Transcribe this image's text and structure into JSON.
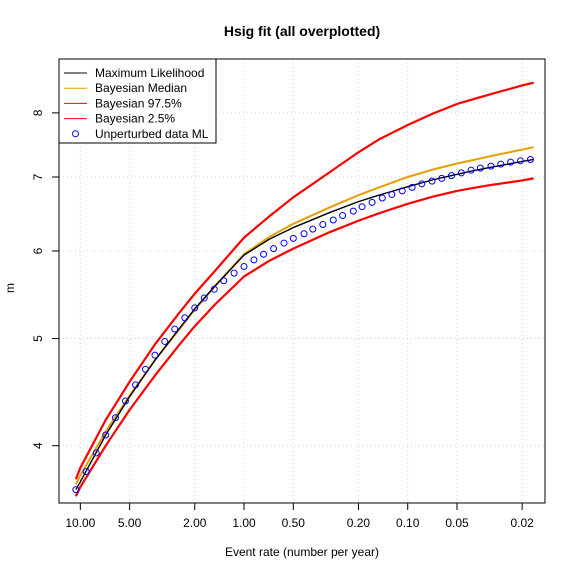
{
  "chart_data": {
    "type": "line",
    "title": "Hsig fit (all overplotted)",
    "xlabel": "Event rate (number per year)",
    "ylabel": "m",
    "x_scale": "log-reversed",
    "y_scale": "log",
    "xlim": [
      13.5,
      0.0145
    ],
    "ylim": [
      3.55,
      8.95
    ],
    "x_ticks": [
      10,
      5,
      2,
      1,
      0.5,
      0.2,
      0.1,
      0.05,
      0.02
    ],
    "x_tick_labels": [
      "10.00",
      "5.00",
      "2.00",
      "1.00",
      "0.50",
      "0.20",
      "0.10",
      "0.05",
      "0.02"
    ],
    "y_ticks": [
      4,
      5,
      6,
      7,
      8
    ],
    "y_tick_labels": [
      "4",
      "5",
      "6",
      "7",
      "8"
    ],
    "grid": true,
    "legend_position": "top-left",
    "colors": {
      "ml": "#000000",
      "median": "#E69F00",
      "upper": "#FF0000",
      "lower": "#FF0000",
      "points": "#0000FF",
      "grid": "#D3D3D3"
    },
    "series": [
      {
        "name": "Maximum Likelihood",
        "style": "line",
        "color": "#000000",
        "x": [
          10.65,
          10,
          7,
          5,
          3.5,
          2.5,
          2,
          1.5,
          1,
          0.7,
          0.5,
          0.3,
          0.2,
          0.15,
          0.1,
          0.07,
          0.05,
          0.04,
          0.03,
          0.02,
          0.017
        ],
        "y": [
          3.65,
          3.71,
          4.09,
          4.43,
          4.78,
          5.1,
          5.32,
          5.58,
          5.95,
          6.15,
          6.3,
          6.5,
          6.65,
          6.74,
          6.86,
          6.96,
          7.04,
          7.09,
          7.15,
          7.23,
          7.26
        ]
      },
      {
        "name": "Bayesian Median",
        "style": "line",
        "color": "#E69F00",
        "x": [
          10.65,
          10,
          7,
          5,
          3.5,
          2.5,
          2,
          1.5,
          1,
          0.7,
          0.5,
          0.3,
          0.2,
          0.15,
          0.1,
          0.07,
          0.05,
          0.04,
          0.03,
          0.02,
          0.017
        ],
        "y": [
          3.69,
          3.76,
          4.12,
          4.44,
          4.78,
          5.09,
          5.31,
          5.58,
          5.96,
          6.18,
          6.35,
          6.57,
          6.74,
          6.85,
          7.0,
          7.11,
          7.2,
          7.25,
          7.32,
          7.41,
          7.45
        ]
      },
      {
        "name": "Bayesian 97.5%",
        "style": "line",
        "color": "#FF0000",
        "x": [
          10.65,
          10,
          7,
          5,
          3.5,
          2.5,
          2,
          1.5,
          1,
          0.7,
          0.5,
          0.3,
          0.2,
          0.15,
          0.1,
          0.07,
          0.05,
          0.04,
          0.03,
          0.02,
          0.017
        ],
        "y": [
          3.73,
          3.82,
          4.22,
          4.57,
          4.94,
          5.27,
          5.49,
          5.76,
          6.17,
          6.45,
          6.71,
          7.07,
          7.37,
          7.57,
          7.8,
          7.99,
          8.15,
          8.23,
          8.33,
          8.47,
          8.52
        ]
      },
      {
        "name": "Bayesian 2.5%",
        "style": "line",
        "color": "#FF0000",
        "x": [
          10.65,
          10,
          7,
          5,
          3.5,
          2.5,
          2,
          1.5,
          1,
          0.7,
          0.5,
          0.3,
          0.2,
          0.15,
          0.1,
          0.07,
          0.05,
          0.04,
          0.03,
          0.02,
          0.017
        ],
        "y": [
          3.6,
          3.67,
          4.0,
          4.31,
          4.63,
          4.93,
          5.13,
          5.37,
          5.69,
          5.88,
          6.03,
          6.24,
          6.39,
          6.49,
          6.62,
          6.72,
          6.8,
          6.84,
          6.89,
          6.95,
          6.98
        ]
      },
      {
        "name": "Unperturbed data ML",
        "style": "points",
        "color": "#0000FF",
        "x": [
          10.65,
          9.2,
          8.0,
          7.0,
          6.1,
          5.3,
          4.6,
          4.0,
          3.5,
          3.05,
          2.65,
          2.3,
          2.0,
          1.75,
          1.52,
          1.33,
          1.15,
          1.0,
          0.87,
          0.76,
          0.66,
          0.57,
          0.5,
          0.43,
          0.38,
          0.33,
          0.285,
          0.25,
          0.215,
          0.19,
          0.165,
          0.143,
          0.125,
          0.108,
          0.094,
          0.082,
          0.071,
          0.062,
          0.054,
          0.047,
          0.041,
          0.036,
          0.031,
          0.027,
          0.0235,
          0.0205,
          0.0178
        ],
        "y": [
          3.65,
          3.79,
          3.94,
          4.09,
          4.24,
          4.39,
          4.54,
          4.69,
          4.83,
          4.97,
          5.1,
          5.22,
          5.33,
          5.44,
          5.54,
          5.64,
          5.73,
          5.81,
          5.89,
          5.96,
          6.03,
          6.1,
          6.16,
          6.22,
          6.28,
          6.34,
          6.4,
          6.46,
          6.52,
          6.58,
          6.64,
          6.7,
          6.75,
          6.8,
          6.85,
          6.9,
          6.94,
          6.98,
          7.02,
          7.06,
          7.1,
          7.13,
          7.16,
          7.19,
          7.22,
          7.24,
          7.26
        ]
      }
    ]
  }
}
